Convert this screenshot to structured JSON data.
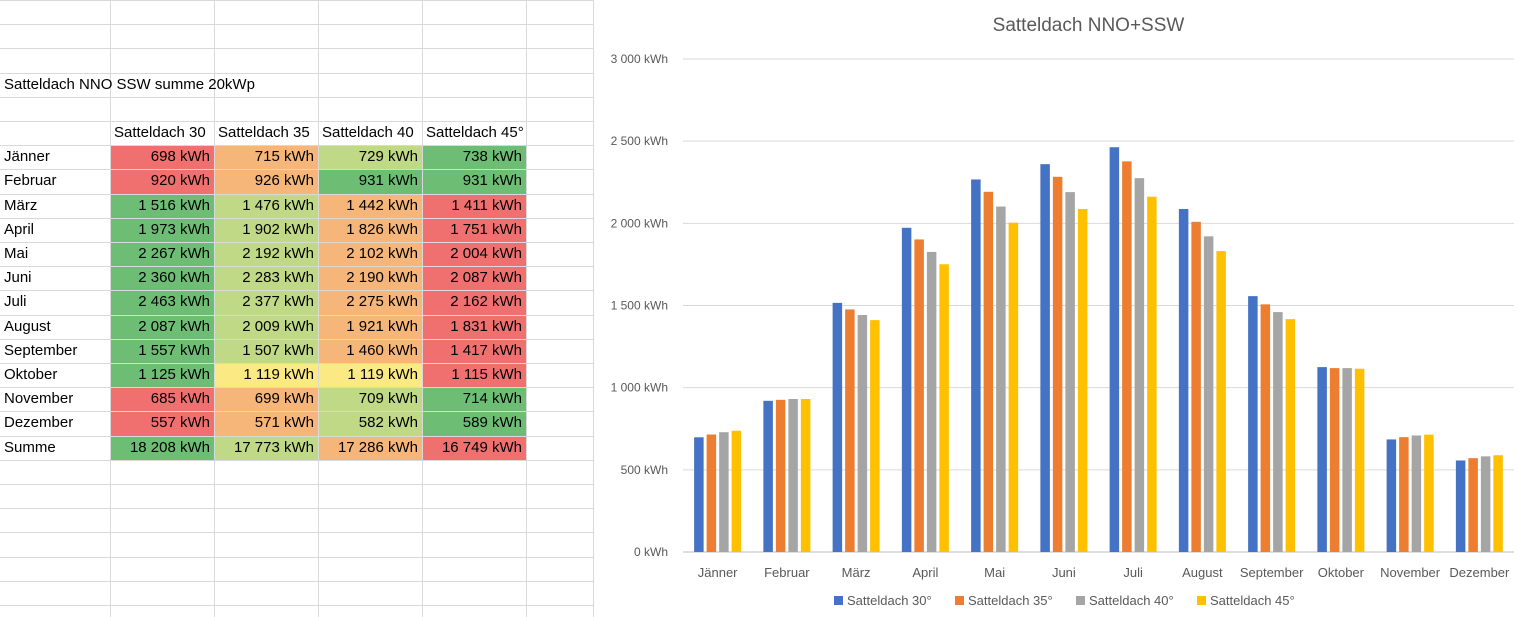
{
  "sheet": {
    "title": "Satteldach NNO SSW summe 20kWp",
    "headers": [
      "Satteldach 30",
      "Satteldach 35",
      "Satteldach 40",
      "Satteldach 45°"
    ],
    "rows": [
      {
        "label": "Jänner",
        "values": [
          "698 kWh",
          "715 kWh",
          "729 kWh",
          "738 kWh"
        ],
        "colors": [
          "#f07070",
          "#f6b67a",
          "#c0d986",
          "#6dbe74"
        ]
      },
      {
        "label": "Februar",
        "values": [
          "920 kWh",
          "926 kWh",
          "931 kWh",
          "931 kWh"
        ],
        "colors": [
          "#f07070",
          "#f6b67a",
          "#6dbe74",
          "#6dbe74"
        ]
      },
      {
        "label": "März",
        "values": [
          "1 516 kWh",
          "1 476 kWh",
          "1 442 kWh",
          "1 411 kWh"
        ],
        "colors": [
          "#6dbe74",
          "#c0d986",
          "#f6b67a",
          "#f07070"
        ]
      },
      {
        "label": "April",
        "values": [
          "1 973 kWh",
          "1 902 kWh",
          "1 826 kWh",
          "1 751 kWh"
        ],
        "colors": [
          "#6dbe74",
          "#c0d986",
          "#f6b67a",
          "#f07070"
        ]
      },
      {
        "label": "Mai",
        "values": [
          "2 267 kWh",
          "2 192 kWh",
          "2 102 kWh",
          "2 004 kWh"
        ],
        "colors": [
          "#6dbe74",
          "#c0d986",
          "#f6b67a",
          "#f07070"
        ]
      },
      {
        "label": "Juni",
        "values": [
          "2 360 kWh",
          "2 283 kWh",
          "2 190 kWh",
          "2 087 kWh"
        ],
        "colors": [
          "#6dbe74",
          "#c0d986",
          "#f6b67a",
          "#f07070"
        ]
      },
      {
        "label": "Juli",
        "values": [
          "2 463 kWh",
          "2 377 kWh",
          "2 275 kWh",
          "2 162 kWh"
        ],
        "colors": [
          "#6dbe74",
          "#c0d986",
          "#f6b67a",
          "#f07070"
        ]
      },
      {
        "label": "August",
        "values": [
          "2 087 kWh",
          "2 009 kWh",
          "1 921 kWh",
          "1 831 kWh"
        ],
        "colors": [
          "#6dbe74",
          "#c0d986",
          "#f6b67a",
          "#f07070"
        ]
      },
      {
        "label": "September",
        "values": [
          "1 557 kWh",
          "1 507 kWh",
          "1 460 kWh",
          "1 417 kWh"
        ],
        "colors": [
          "#6dbe74",
          "#c0d986",
          "#f6b67a",
          "#f07070"
        ]
      },
      {
        "label": "Oktober",
        "values": [
          "1 125 kWh",
          "1 119 kWh",
          "1 119 kWh",
          "1 115 kWh"
        ],
        "colors": [
          "#6dbe74",
          "#fbe983",
          "#fbe983",
          "#f07070"
        ]
      },
      {
        "label": "November",
        "values": [
          "685 kWh",
          "699 kWh",
          "709 kWh",
          "714 kWh"
        ],
        "colors": [
          "#f07070",
          "#f6b67a",
          "#c0d986",
          "#6dbe74"
        ]
      },
      {
        "label": "Dezember",
        "values": [
          "557 kWh",
          "571 kWh",
          "582 kWh",
          "589 kWh"
        ],
        "colors": [
          "#f07070",
          "#f6b67a",
          "#c0d986",
          "#6dbe74"
        ]
      },
      {
        "label": "Summe",
        "values": [
          "18 208 kWh",
          "17 773 kWh",
          "17 286 kWh",
          "16 749 kWh"
        ],
        "colors": [
          "#6dbe74",
          "#c0d986",
          "#f6b67a",
          "#f07070"
        ]
      }
    ]
  },
  "chart_data": {
    "type": "bar",
    "title": "Satteldach NNO+SSW",
    "xlabel": "",
    "ylabel": "",
    "ylim": [
      0,
      3000
    ],
    "yticks": [
      0,
      500,
      1000,
      1500,
      2000,
      2500,
      3000
    ],
    "ytick_labels": [
      "0 kWh",
      "500 kWh",
      "1 000 kWh",
      "1 500 kWh",
      "2 000 kWh",
      "2 500 kWh",
      "3 000 kWh"
    ],
    "grid": true,
    "legend_position": "bottom",
    "categories": [
      "Jänner",
      "Februar",
      "März",
      "April",
      "Mai",
      "Juni",
      "Juli",
      "August",
      "September",
      "Oktober",
      "November",
      "Dezember"
    ],
    "series": [
      {
        "name": "Satteldach 30°",
        "color": "#4472c4",
        "values": [
          698,
          920,
          1516,
          1973,
          2267,
          2360,
          2463,
          2087,
          1557,
          1125,
          685,
          557
        ]
      },
      {
        "name": "Satteldach 35°",
        "color": "#ed7d31",
        "values": [
          715,
          926,
          1476,
          1902,
          2192,
          2283,
          2377,
          2009,
          1507,
          1119,
          699,
          571
        ]
      },
      {
        "name": "Satteldach 40°",
        "color": "#a5a5a5",
        "values": [
          729,
          931,
          1442,
          1826,
          2102,
          2190,
          2275,
          1921,
          1460,
          1119,
          709,
          582
        ]
      },
      {
        "name": "Satteldach 45°",
        "color": "#ffc000",
        "values": [
          738,
          931,
          1411,
          1751,
          2004,
          2087,
          2162,
          1831,
          1417,
          1115,
          714,
          589
        ]
      }
    ]
  }
}
